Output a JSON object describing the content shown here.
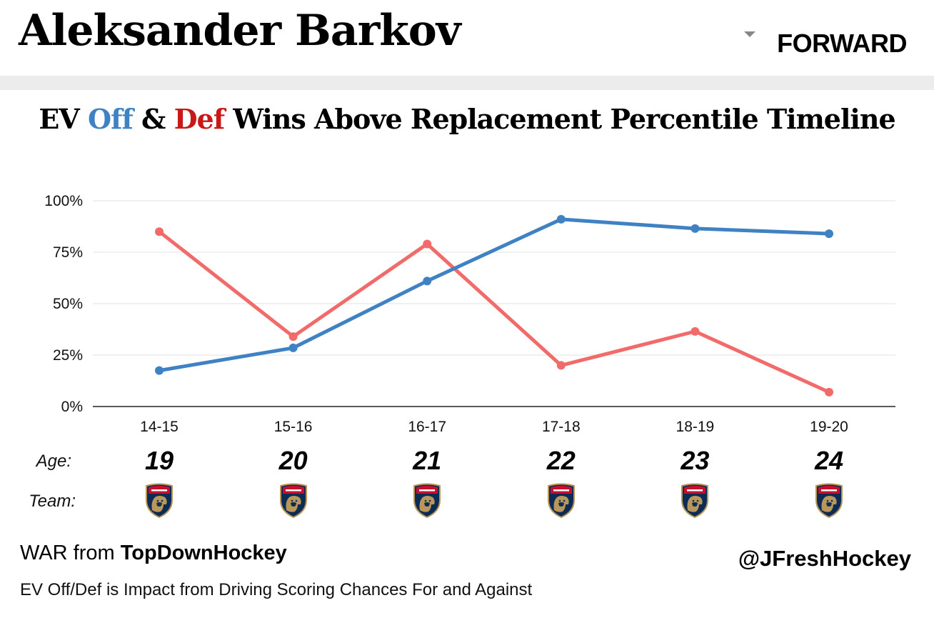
{
  "header": {
    "player_name": "Aleksander Barkov",
    "position": "FORWARD"
  },
  "title": {
    "part1": "EV ",
    "off": "Off",
    "amp": " & ",
    "def": "Def",
    "rest": " Wins Above Replacement Percentile Timeline"
  },
  "rows": {
    "age_label": "Age:",
    "team_label": "Team:"
  },
  "ages": [
    "19",
    "20",
    "21",
    "22",
    "23",
    "24"
  ],
  "team_logo": "florida-panthers-logo",
  "footer": {
    "source_prefix": "WAR from ",
    "source_name": "TopDownHockey",
    "note": "EV Off/Def is Impact from Driving Scoring Chances For and Against",
    "handle": "@JFreshHockey"
  },
  "colors": {
    "off": "#3e82c4",
    "def": "#f26b6b",
    "def_title": "#c81818"
  },
  "chart_data": {
    "type": "line",
    "categories": [
      "14-15",
      "15-16",
      "16-17",
      "17-18",
      "18-19",
      "19-20"
    ],
    "series": [
      {
        "name": "Off",
        "values": [
          17.5,
          28.5,
          61,
          91,
          86.5,
          84
        ]
      },
      {
        "name": "Def",
        "values": [
          85,
          34,
          79,
          20,
          36.5,
          7
        ]
      }
    ],
    "ylim": [
      0,
      100
    ],
    "yticks": [
      "0%",
      "25%",
      "50%",
      "75%",
      "100%"
    ],
    "grid": true
  }
}
